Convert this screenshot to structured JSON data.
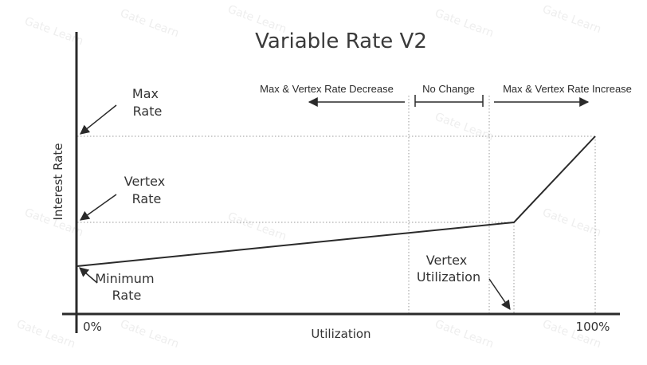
{
  "title": "Variable Rate V2",
  "axes": {
    "ylabel": "Interest Rate",
    "xlabel": "Utilization",
    "x_start": "0%",
    "x_end": "100%"
  },
  "zones": {
    "decrease": "Max & Vertex Rate Decrease",
    "no_change": "No Change",
    "increase": "Max & Vertex Rate Increase"
  },
  "callouts": {
    "max_rate": [
      "Max",
      "Rate"
    ],
    "vertex_rate": [
      "Vertex",
      "Rate"
    ],
    "minimum_rate": [
      "Minimum",
      "Rate"
    ],
    "vertex_utilization": [
      "Vertex",
      "Utilization"
    ]
  },
  "watermark": "Gate Learn",
  "colors": {
    "axis": "#2a2a2a",
    "line": "#2a2a2a",
    "guide": "#9a9a9a"
  }
}
